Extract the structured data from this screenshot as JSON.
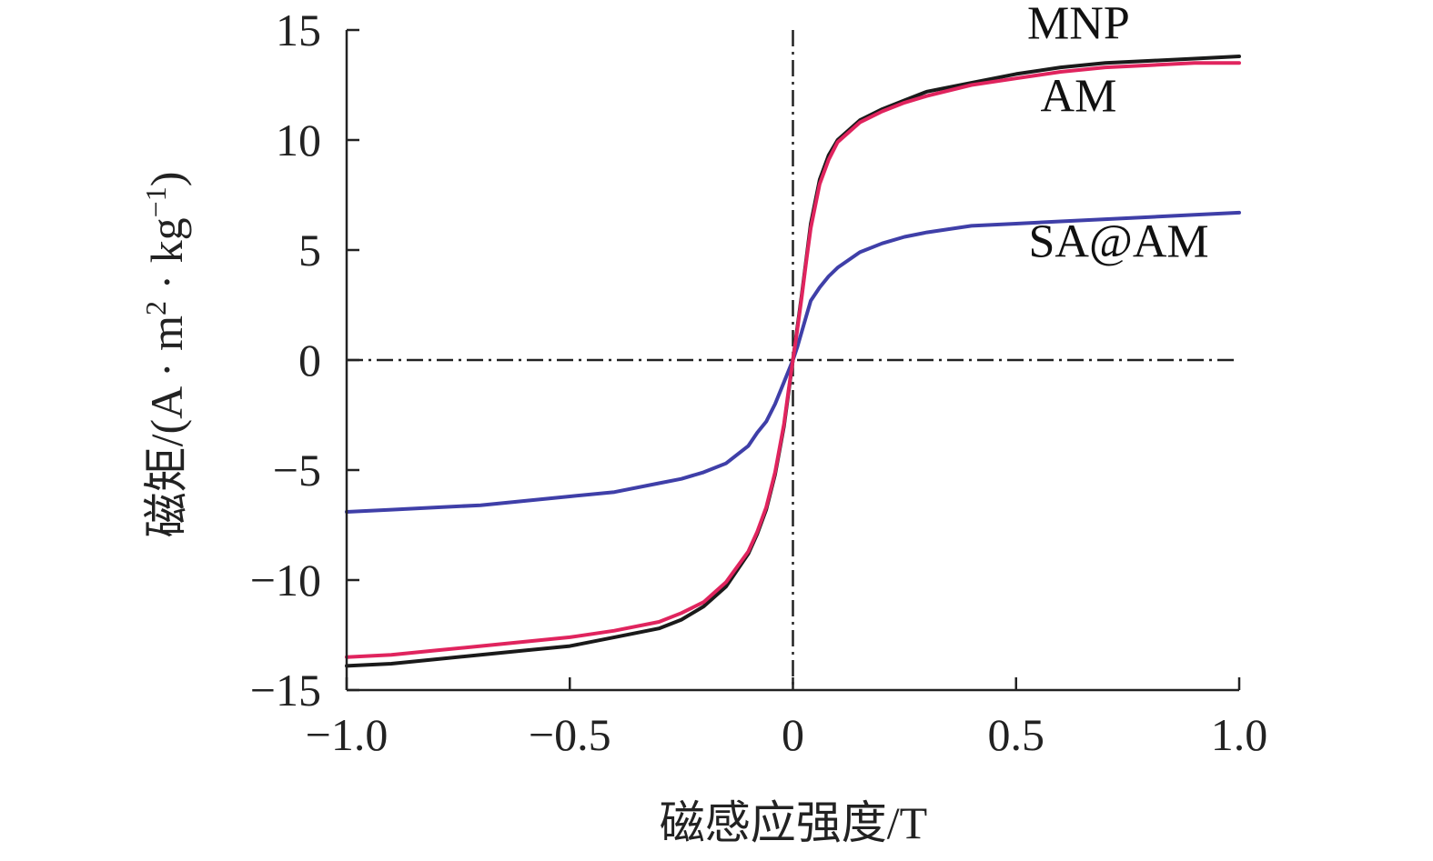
{
  "chart_data": {
    "type": "line",
    "title": "",
    "xlabel": "磁感应强度/T",
    "ylabel": "磁矩/(A · m² · kg⁻¹)",
    "ylabel_parts": {
      "prefix": "磁矩/(A · m",
      "sup1": "2",
      "middle": " · kg",
      "sup2": "−1",
      "suffix": ")"
    },
    "xlim": [
      -1.0,
      1.0
    ],
    "ylim": [
      -15,
      15
    ],
    "x_ticks": [
      -1.0,
      -0.5,
      0,
      0.5,
      1.0
    ],
    "x_tick_labels": [
      "−1.0",
      "−0.5",
      "0",
      "0.5",
      "1.0"
    ],
    "y_ticks": [
      -15,
      -10,
      -5,
      0,
      5,
      10,
      15
    ],
    "y_tick_labels": [
      "−15",
      "−10",
      "−5",
      "0",
      "5",
      "10",
      "15"
    ],
    "grid": false,
    "reference_lines": {
      "x": 0,
      "y": 0,
      "style": "dash-dot"
    },
    "series": [
      {
        "name": "MNP",
        "color": "#1a1a1a",
        "x": [
          -1.0,
          -0.9,
          -0.8,
          -0.7,
          -0.6,
          -0.5,
          -0.4,
          -0.3,
          -0.25,
          -0.2,
          -0.15,
          -0.1,
          -0.08,
          -0.06,
          -0.04,
          -0.02,
          -0.01,
          0,
          0.01,
          0.02,
          0.03,
          0.04,
          0.06,
          0.08,
          0.1,
          0.15,
          0.2,
          0.25,
          0.3,
          0.4,
          0.5,
          0.6,
          0.7,
          0.8,
          0.9,
          1.0
        ],
        "y": [
          -13.9,
          -13.8,
          -13.6,
          -13.4,
          -13.2,
          -13.0,
          -12.6,
          -12.2,
          -11.8,
          -11.2,
          -10.3,
          -8.8,
          -7.9,
          -6.8,
          -5.2,
          -3.0,
          -1.5,
          0.0,
          1.5,
          3.0,
          4.6,
          6.2,
          8.2,
          9.3,
          10.0,
          10.9,
          11.4,
          11.8,
          12.2,
          12.6,
          13.0,
          13.3,
          13.5,
          13.6,
          13.7,
          13.8
        ]
      },
      {
        "name": "AM",
        "color": "#e0245e",
        "x": [
          -1.0,
          -0.9,
          -0.8,
          -0.7,
          -0.6,
          -0.5,
          -0.4,
          -0.3,
          -0.25,
          -0.2,
          -0.15,
          -0.1,
          -0.08,
          -0.06,
          -0.04,
          -0.02,
          -0.01,
          0,
          0.01,
          0.02,
          0.03,
          0.04,
          0.06,
          0.08,
          0.1,
          0.15,
          0.2,
          0.25,
          0.3,
          0.4,
          0.5,
          0.6,
          0.7,
          0.8,
          0.9,
          1.0
        ],
        "y": [
          -13.5,
          -13.4,
          -13.2,
          -13.0,
          -12.8,
          -12.6,
          -12.3,
          -11.9,
          -11.5,
          -11.0,
          -10.1,
          -8.7,
          -7.8,
          -6.7,
          -5.1,
          -2.9,
          -1.4,
          0.0,
          1.4,
          2.9,
          4.5,
          6.0,
          8.0,
          9.1,
          9.9,
          10.8,
          11.3,
          11.7,
          12.0,
          12.5,
          12.8,
          13.1,
          13.3,
          13.4,
          13.5,
          13.5
        ]
      },
      {
        "name": "SA@AM",
        "color": "#3f3fa8",
        "x": [
          -1.0,
          -0.9,
          -0.8,
          -0.7,
          -0.6,
          -0.5,
          -0.4,
          -0.3,
          -0.25,
          -0.2,
          -0.15,
          -0.1,
          -0.08,
          -0.06,
          -0.04,
          -0.02,
          -0.01,
          0,
          0.01,
          0.02,
          0.03,
          0.04,
          0.06,
          0.08,
          0.1,
          0.15,
          0.2,
          0.25,
          0.3,
          0.4,
          0.5,
          0.6,
          0.7,
          0.8,
          0.9,
          1.0
        ],
        "y": [
          -6.9,
          -6.8,
          -6.7,
          -6.6,
          -6.4,
          -6.2,
          -6.0,
          -5.6,
          -5.4,
          -5.1,
          -4.7,
          -3.9,
          -3.3,
          -2.8,
          -2.0,
          -1.0,
          -0.5,
          0.0,
          0.6,
          1.3,
          2.0,
          2.7,
          3.3,
          3.8,
          4.2,
          4.9,
          5.3,
          5.6,
          5.8,
          6.1,
          6.2,
          6.3,
          6.4,
          6.5,
          6.6,
          6.7
        ]
      }
    ],
    "annotations": [
      {
        "text": "MNP",
        "x": 0.64,
        "y": 14.6
      },
      {
        "text": "AM",
        "x": 0.64,
        "y": 11.3
      },
      {
        "text": "SA@AM",
        "x": 0.73,
        "y": 4.7
      }
    ]
  }
}
